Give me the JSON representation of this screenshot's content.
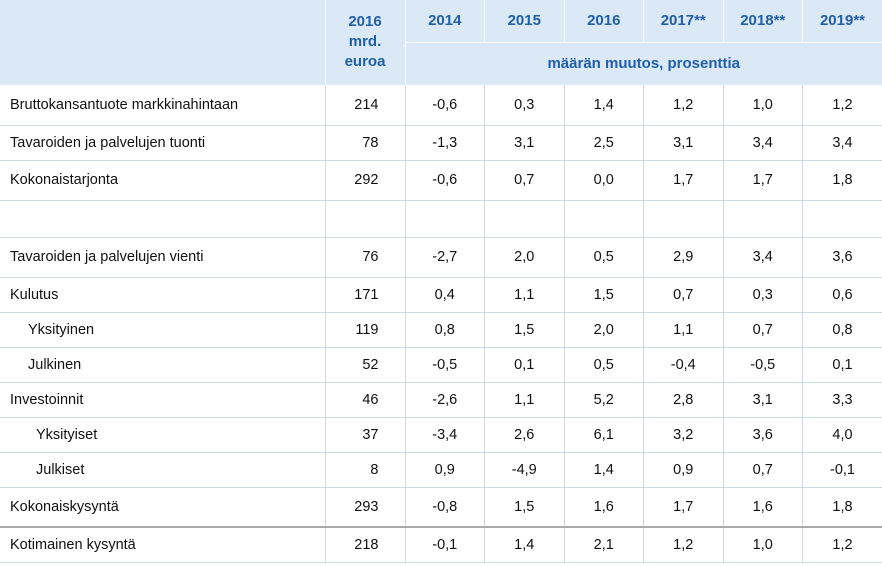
{
  "header": {
    "base_year": "2016",
    "base_unit_line1": "mrd.",
    "base_unit_line2": "euroa",
    "years": [
      "2014",
      "2015",
      "2016",
      "2017**",
      "2018**",
      "2019**"
    ],
    "change_unit": "määrän muutos, prosenttia"
  },
  "rows": [
    {
      "label": "Bruttokansantuote markkinahintaan",
      "base": "214",
      "values": [
        "-0,6",
        "0,3",
        "1,4",
        "1,2",
        "1,0",
        "1,2"
      ]
    },
    {
      "label": "Tavaroiden ja palvelujen tuonti",
      "base": "78",
      "values": [
        "-1,3",
        "3,1",
        "2,5",
        "3,1",
        "3,4",
        "3,4"
      ]
    },
    {
      "label": "Kokonaistarjonta",
      "base": "292",
      "values": [
        "-0,6",
        "0,7",
        "0,0",
        "1,7",
        "1,7",
        "1,8"
      ]
    },
    {
      "label": "Tavaroiden ja palvelujen vienti",
      "base": "76",
      "values": [
        "-2,7",
        "2,0",
        "0,5",
        "2,9",
        "3,4",
        "3,6"
      ]
    },
    {
      "label": "Kulutus",
      "base": "171",
      "values": [
        "0,4",
        "1,1",
        "1,5",
        "0,7",
        "0,3",
        "0,6"
      ]
    },
    {
      "label": "Yksityinen",
      "base": "119",
      "values": [
        "0,8",
        "1,5",
        "2,0",
        "1,1",
        "0,7",
        "0,8"
      ]
    },
    {
      "label": "Julkinen",
      "base": "52",
      "values": [
        "-0,5",
        "0,1",
        "0,5",
        "-0,4",
        "-0,5",
        "0,1"
      ]
    },
    {
      "label": "Investoinnit",
      "base": "46",
      "values": [
        "-2,6",
        "1,1",
        "5,2",
        "2,8",
        "3,1",
        "3,3"
      ]
    },
    {
      "label": "Yksityiset",
      "base": "37",
      "values": [
        "-3,4",
        "2,6",
        "6,1",
        "3,2",
        "3,6",
        "4,0"
      ]
    },
    {
      "label": "Julkiset",
      "base": "8",
      "values": [
        "0,9",
        "-4,9",
        "1,4",
        "0,9",
        "0,7",
        "-0,1"
      ]
    },
    {
      "label": "Kokonaiskysyntä",
      "base": "293",
      "values": [
        "-0,8",
        "1,5",
        "1,6",
        "1,7",
        "1,6",
        "1,8"
      ]
    },
    {
      "label": "Kotimainen kysyntä",
      "base": "218",
      "values": [
        "-0,1",
        "1,4",
        "2,1",
        "1,2",
        "1,0",
        "1,2"
      ]
    }
  ]
}
